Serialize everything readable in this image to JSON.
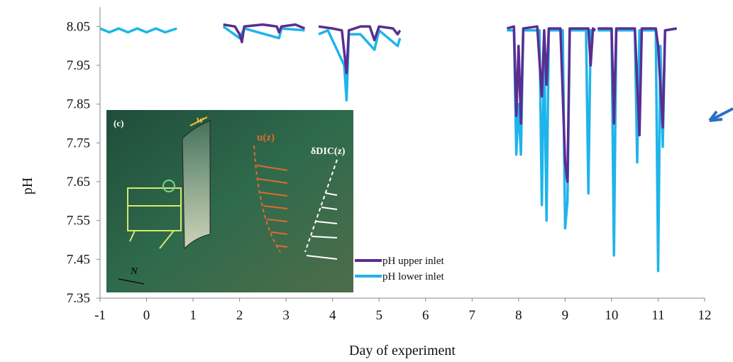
{
  "chart_data": {
    "type": "line",
    "x_label": "Day of experiment",
    "y_label": "pH",
    "xlim": [
      -1,
      12
    ],
    "xticks": [
      -1,
      0,
      1,
      2,
      3,
      4,
      5,
      6,
      7,
      8,
      9,
      10,
      11,
      12
    ],
    "ylim": [
      7.35,
      8.1
    ],
    "yticks": [
      7.35,
      7.45,
      7.55,
      7.65,
      7.75,
      7.85,
      7.95,
      8.05
    ],
    "grid": false,
    "legend": "lower-center",
    "series": [
      {
        "name": "pH lower inlet",
        "color": "#1fb4ea",
        "x": [
          -1,
          -0.8,
          -0.6,
          -0.4,
          -0.2,
          0,
          0.2,
          0.4,
          0.65,
          1.1,
          1.65,
          2.0,
          2.1,
          2.85,
          2.9,
          3.4,
          3.55,
          3.7,
          3.9,
          4.25,
          4.3,
          4.35,
          4.6,
          4.9,
          5.0,
          5.4,
          5.45,
          6.5,
          7.75,
          7.9,
          7.95,
          8.0,
          8.05,
          8.1,
          8.45,
          8.5,
          8.55,
          8.6,
          8.65,
          8.95,
          9.0,
          9.05,
          9.1,
          9.45,
          9.5,
          9.55,
          9.65,
          9.68,
          9.7,
          10.0,
          10.05,
          10.1,
          10.5,
          10.55,
          10.6,
          10.95,
          11.0,
          11.05,
          11.1,
          11.15,
          11.4
        ],
        "values": [
          8.045,
          8.035,
          8.045,
          8.035,
          8.045,
          8.035,
          8.045,
          8.035,
          8.045,
          null,
          8.05,
          8.02,
          8.045,
          8.02,
          8.045,
          8.04,
          null,
          8.03,
          8.04,
          7.95,
          7.86,
          8.03,
          8.03,
          7.99,
          8.04,
          8.0,
          8.02,
          null,
          8.04,
          8.04,
          7.72,
          7.85,
          7.72,
          8.04,
          8.04,
          7.59,
          8.0,
          7.55,
          8.04,
          8.04,
          7.53,
          7.6,
          8.04,
          8.04,
          7.62,
          8.04,
          8.04,
          null,
          8.04,
          8.04,
          7.46,
          8.04,
          8.04,
          7.7,
          8.04,
          8.04,
          7.42,
          8.0,
          7.74,
          8.04,
          8.045
        ]
      },
      {
        "name": "pH upper inlet",
        "color": "#5a2d91",
        "x": [
          1.65,
          1.9,
          2.0,
          2.05,
          2.1,
          2.5,
          2.8,
          2.85,
          2.9,
          3.2,
          3.4,
          3.55,
          3.7,
          4.0,
          4.2,
          4.3,
          4.35,
          4.6,
          4.8,
          4.9,
          5.0,
          5.3,
          5.4,
          5.45,
          6.5,
          7.75,
          7.9,
          7.95,
          8.0,
          8.05,
          8.1,
          8.4,
          8.5,
          8.55,
          8.6,
          8.65,
          8.9,
          9.0,
          9.05,
          9.1,
          9.5,
          9.55,
          9.6,
          9.65,
          9.68,
          9.7,
          10.0,
          10.05,
          10.1,
          10.5,
          10.6,
          10.65,
          10.95,
          11.0,
          11.1,
          11.15,
          11.4
        ],
        "values": [
          8.055,
          8.05,
          8.03,
          8.01,
          8.05,
          8.055,
          8.05,
          8.035,
          8.05,
          8.055,
          8.045,
          null,
          8.05,
          8.045,
          8.04,
          7.93,
          8.04,
          8.05,
          8.05,
          8.015,
          8.05,
          8.045,
          8.03,
          8.04,
          null,
          8.045,
          8.05,
          7.82,
          8.0,
          7.8,
          8.045,
          8.05,
          7.87,
          8.04,
          7.9,
          8.045,
          8.045,
          7.7,
          7.65,
          8.045,
          8.045,
          7.95,
          8.045,
          8.04,
          null,
          8.045,
          8.045,
          7.8,
          8.045,
          8.045,
          7.77,
          8.045,
          8.045,
          8.0,
          7.79,
          8.04,
          8.045
        ]
      }
    ],
    "legend_order": [
      "pH upper inlet",
      "pH lower inlet"
    ],
    "annotations": {
      "panel": "(c)",
      "width": "w",
      "velocity": "u(z)",
      "dic": "δDIC(z)",
      "north": "N"
    }
  }
}
